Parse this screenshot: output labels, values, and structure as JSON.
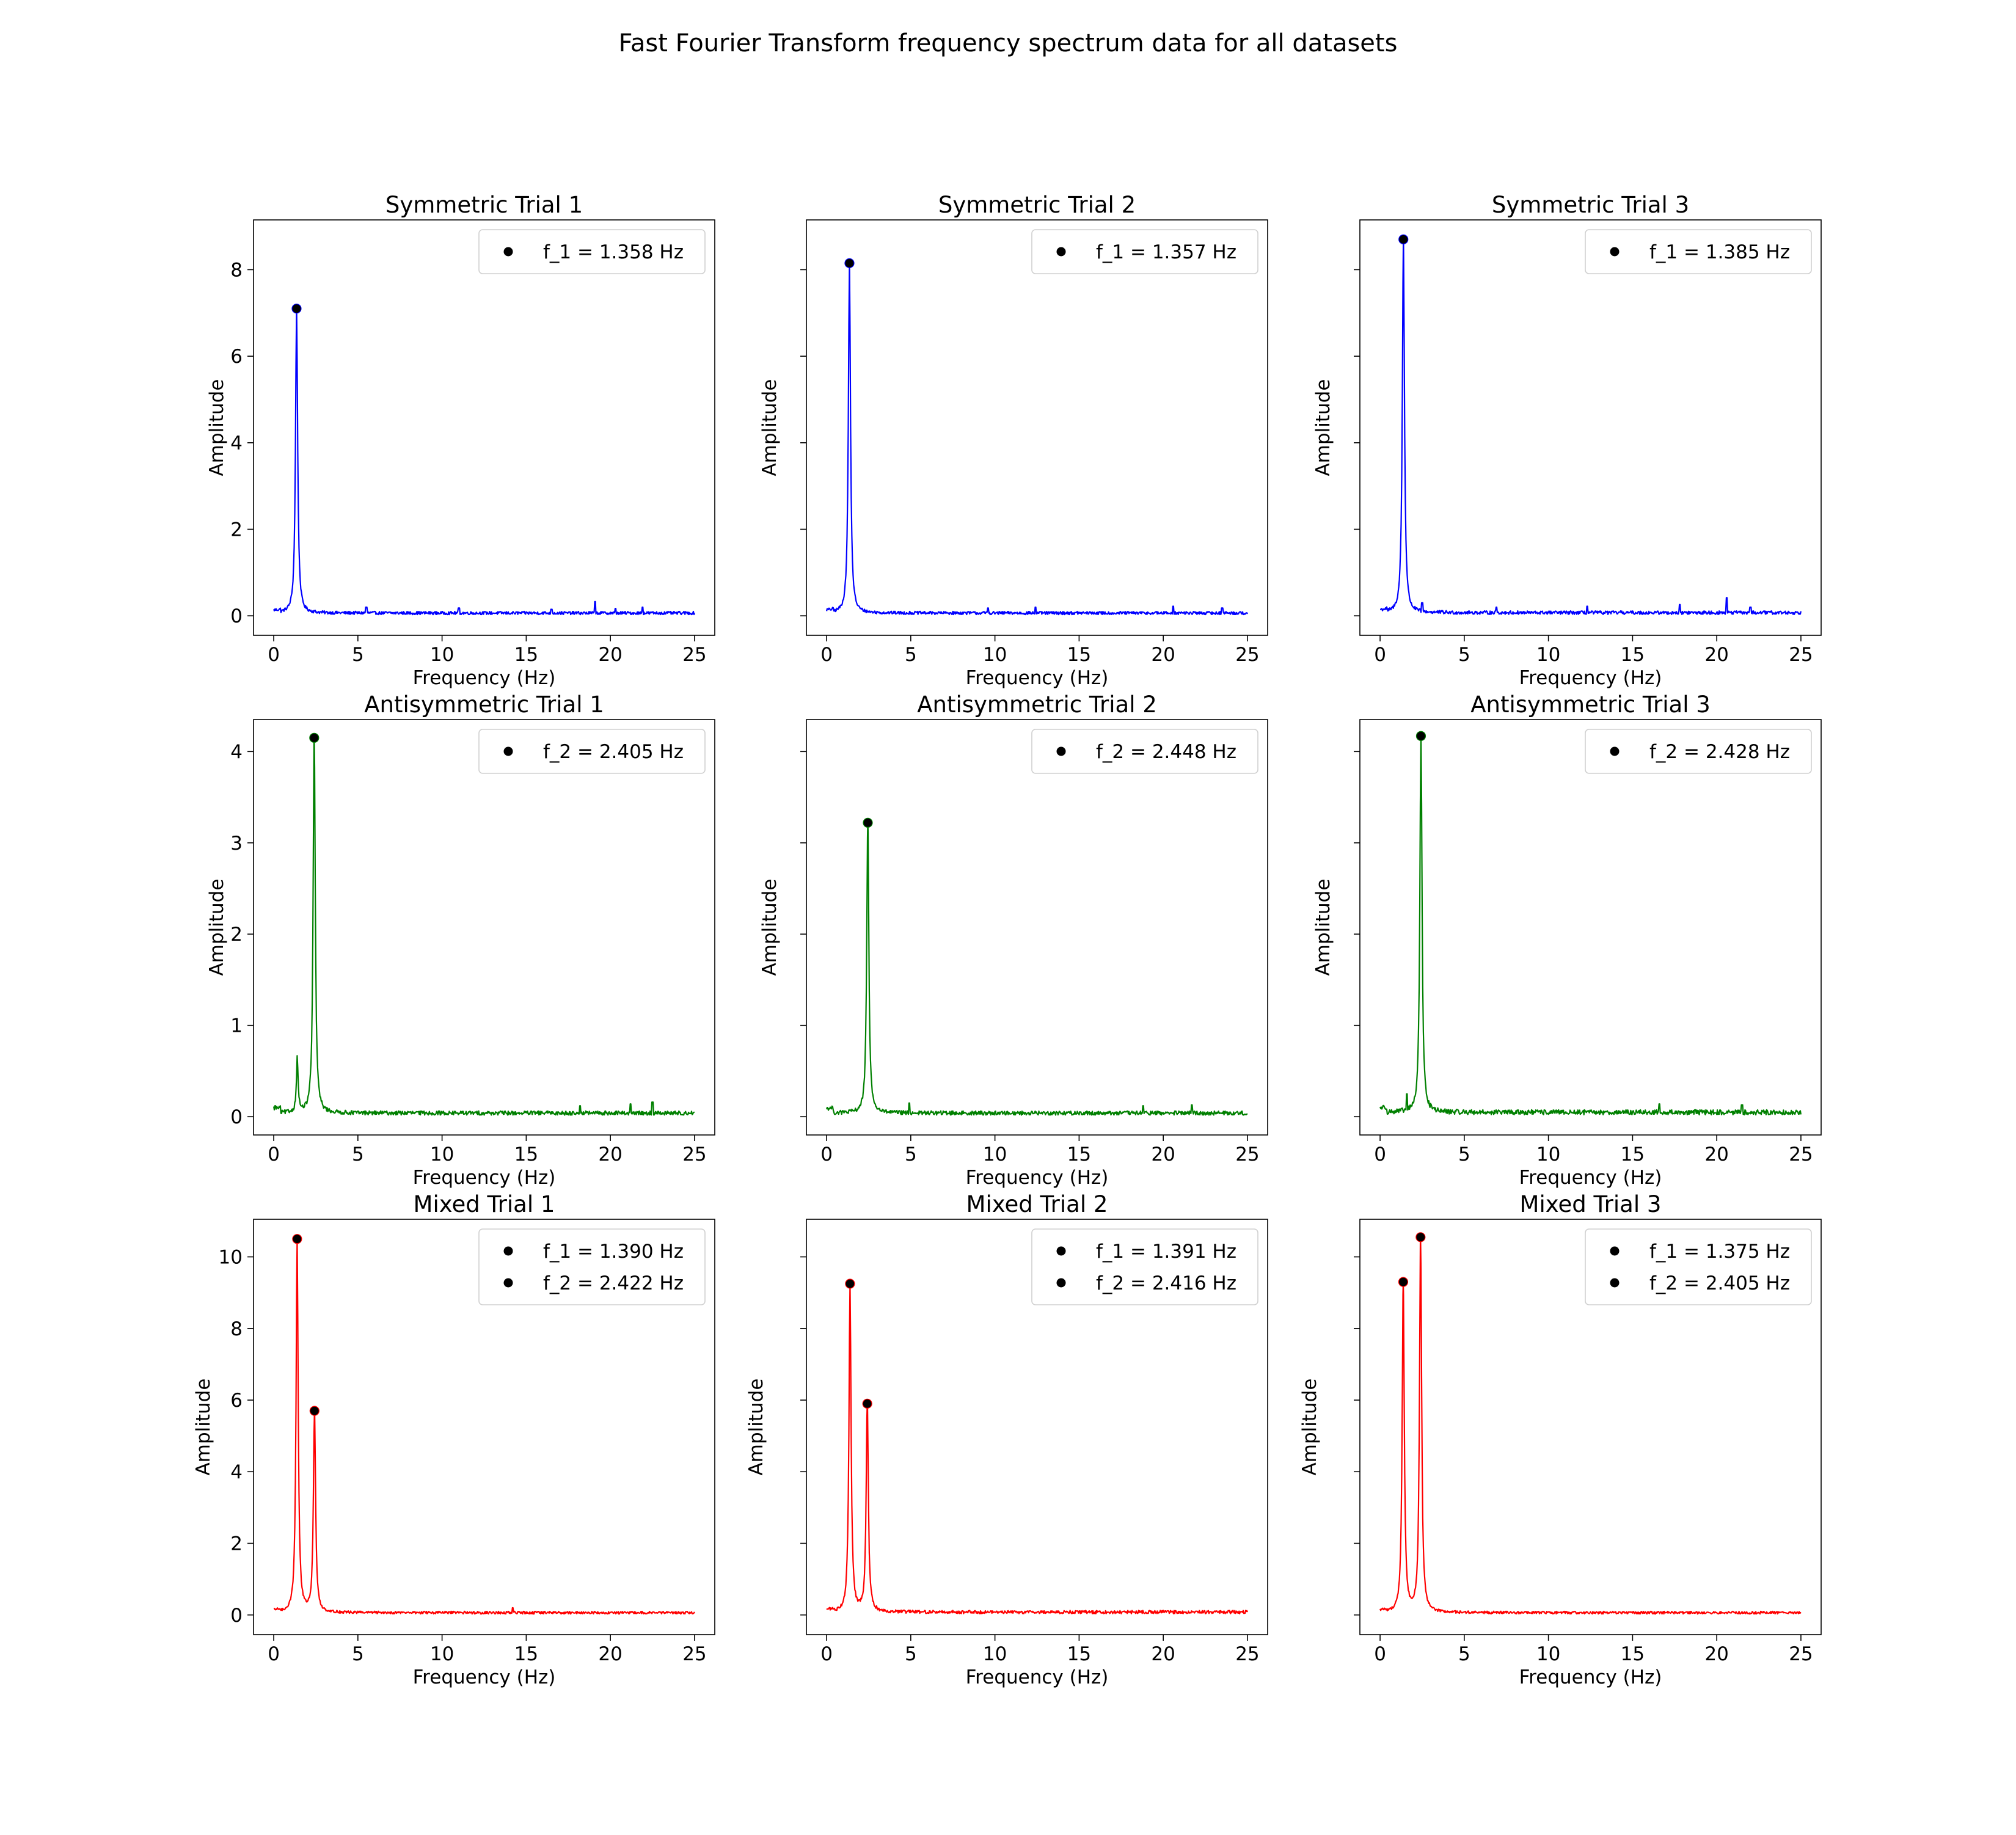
{
  "figure": {
    "title": "Fast Fourier Transform frequency spectrum data for all datasets"
  },
  "chart_data": [
    {
      "type": "line",
      "title": "Symmetric Trial 1",
      "xlabel": "Frequency (Hz)",
      "ylabel": "Amplitude",
      "color": "#0000ff",
      "xlim": [
        -1.2,
        26.2
      ],
      "ylim": [
        -0.45,
        9.15
      ],
      "xticks": [
        0,
        5,
        10,
        15,
        20,
        25
      ],
      "yticks": [
        0,
        2,
        4,
        6,
        8
      ],
      "show_ytick_labels": true,
      "peaks": [
        {
          "f": 1.358,
          "amp": 7.1
        }
      ],
      "secondary": [],
      "noise_level": 0.08,
      "spikes": [
        [
          5.5,
          0.2
        ],
        [
          11.0,
          0.18
        ],
        [
          16.5,
          0.15
        ],
        [
          19.1,
          0.33
        ],
        [
          20.3,
          0.17
        ],
        [
          21.9,
          0.2
        ]
      ],
      "legend": [
        "f_1 = 1.358 Hz"
      ]
    },
    {
      "type": "line",
      "title": "Symmetric Trial 2",
      "xlabel": "Frequency (Hz)",
      "ylabel": "Amplitude",
      "color": "#0000ff",
      "xlim": [
        -1.2,
        26.2
      ],
      "ylim": [
        -0.45,
        9.15
      ],
      "xticks": [
        0,
        5,
        10,
        15,
        20,
        25
      ],
      "yticks": [
        0,
        2,
        4,
        6,
        8
      ],
      "show_ytick_labels": false,
      "peaks": [
        {
          "f": 1.357,
          "amp": 8.15
        }
      ],
      "secondary": [],
      "noise_level": 0.08,
      "spikes": [
        [
          9.6,
          0.18
        ],
        [
          12.4,
          0.2
        ],
        [
          20.6,
          0.22
        ],
        [
          23.5,
          0.18
        ]
      ],
      "legend": [
        "f_1 = 1.357 Hz"
      ]
    },
    {
      "type": "line",
      "title": "Symmetric Trial 3",
      "xlabel": "Frequency (Hz)",
      "ylabel": "Amplitude",
      "color": "#0000ff",
      "xlim": [
        -1.2,
        26.2
      ],
      "ylim": [
        -0.45,
        9.15
      ],
      "xticks": [
        0,
        5,
        10,
        15,
        20,
        25
      ],
      "yticks": [
        0,
        2,
        4,
        6,
        8
      ],
      "show_ytick_labels": false,
      "peaks": [
        {
          "f": 1.385,
          "amp": 8.7
        }
      ],
      "secondary": [],
      "noise_level": 0.09,
      "spikes": [
        [
          2.5,
          0.3
        ],
        [
          6.9,
          0.2
        ],
        [
          12.3,
          0.22
        ],
        [
          17.8,
          0.26
        ],
        [
          20.6,
          0.42
        ],
        [
          22.0,
          0.2
        ]
      ],
      "legend": [
        "f_1 = 1.385 Hz"
      ]
    },
    {
      "type": "line",
      "title": "Antisymmetric Trial 1",
      "xlabel": "Frequency (Hz)",
      "ylabel": "Amplitude",
      "color": "#008000",
      "xlim": [
        -1.2,
        26.2
      ],
      "ylim": [
        -0.2,
        4.35
      ],
      "xticks": [
        0,
        5,
        10,
        15,
        20,
        25
      ],
      "yticks": [
        0,
        1,
        2,
        3,
        4
      ],
      "show_ytick_labels": true,
      "peaks": [
        {
          "f": 2.405,
          "amp": 4.15
        }
      ],
      "secondary": [
        [
          1.4,
          0.6
        ]
      ],
      "noise_level": 0.05,
      "spikes": [
        [
          0.1,
          0.12
        ],
        [
          18.2,
          0.12
        ],
        [
          21.2,
          0.14
        ],
        [
          22.5,
          0.16
        ]
      ],
      "legend": [
        "f_2 = 2.405 Hz"
      ]
    },
    {
      "type": "line",
      "title": "Antisymmetric Trial 2",
      "xlabel": "Frequency (Hz)",
      "ylabel": "Amplitude",
      "color": "#008000",
      "xlim": [
        -1.2,
        26.2
      ],
      "ylim": [
        -0.2,
        4.35
      ],
      "xticks": [
        0,
        5,
        10,
        15,
        20,
        25
      ],
      "yticks": [
        0,
        1,
        2,
        3,
        4
      ],
      "show_ytick_labels": false,
      "peaks": [
        {
          "f": 2.448,
          "amp": 3.22
        }
      ],
      "secondary": [],
      "noise_level": 0.05,
      "spikes": [
        [
          4.9,
          0.15
        ],
        [
          18.8,
          0.12
        ],
        [
          21.7,
          0.13
        ]
      ],
      "legend": [
        "f_2 = 2.448 Hz"
      ]
    },
    {
      "type": "line",
      "title": "Antisymmetric Trial 3",
      "xlabel": "Frequency (Hz)",
      "ylabel": "Amplitude",
      "color": "#008000",
      "xlim": [
        -1.2,
        26.2
      ],
      "ylim": [
        -0.2,
        4.35
      ],
      "xticks": [
        0,
        5,
        10,
        15,
        20,
        25
      ],
      "yticks": [
        0,
        1,
        2,
        3,
        4
      ],
      "show_ytick_labels": false,
      "peaks": [
        {
          "f": 2.428,
          "amp": 4.17
        }
      ],
      "secondary": [],
      "noise_level": 0.06,
      "spikes": [
        [
          1.6,
          0.25
        ],
        [
          16.6,
          0.14
        ],
        [
          21.5,
          0.13
        ]
      ],
      "legend": [
        "f_2 = 2.428 Hz"
      ]
    },
    {
      "type": "line",
      "title": "Mixed Trial 1",
      "xlabel": "Frequency (Hz)",
      "ylabel": "Amplitude",
      "color": "#ff0000",
      "xlim": [
        -1.2,
        26.2
      ],
      "ylim": [
        -0.55,
        11.05
      ],
      "xticks": [
        0,
        5,
        10,
        15,
        20,
        25
      ],
      "yticks": [
        0,
        2,
        4,
        6,
        8,
        10
      ],
      "show_ytick_labels": true,
      "peaks": [
        {
          "f": 1.39,
          "amp": 10.5
        },
        {
          "f": 2.422,
          "amp": 5.7
        }
      ],
      "secondary": [],
      "noise_level": 0.08,
      "spikes": [
        [
          14.2,
          0.2
        ]
      ],
      "legend": [
        "f_1 = 1.390 Hz",
        "f_2 = 2.422 Hz"
      ]
    },
    {
      "type": "line",
      "title": "Mixed Trial 2",
      "xlabel": "Frequency (Hz)",
      "ylabel": "Amplitude",
      "color": "#ff0000",
      "xlim": [
        -1.2,
        26.2
      ],
      "ylim": [
        -0.55,
        11.05
      ],
      "xticks": [
        0,
        5,
        10,
        15,
        20,
        25
      ],
      "yticks": [
        0,
        2,
        4,
        6,
        8,
        10
      ],
      "show_ytick_labels": false,
      "peaks": [
        {
          "f": 1.391,
          "amp": 9.25
        },
        {
          "f": 2.416,
          "amp": 5.9
        }
      ],
      "secondary": [],
      "noise_level": 0.1,
      "spikes": [],
      "legend": [
        "f_1 = 1.391 Hz",
        "f_2 = 2.416 Hz"
      ]
    },
    {
      "type": "line",
      "title": "Mixed Trial 3",
      "xlabel": "Frequency (Hz)",
      "ylabel": "Amplitude",
      "color": "#ff0000",
      "xlim": [
        -1.2,
        26.2
      ],
      "ylim": [
        -0.55,
        11.05
      ],
      "xticks": [
        0,
        5,
        10,
        15,
        20,
        25
      ],
      "yticks": [
        0,
        2,
        4,
        6,
        8,
        10
      ],
      "show_ytick_labels": false,
      "peaks": [
        {
          "f": 1.375,
          "amp": 9.3
        },
        {
          "f": 2.405,
          "amp": 10.55
        }
      ],
      "secondary": [],
      "noise_level": 0.08,
      "spikes": [],
      "legend": [
        "f_1 = 1.375 Hz",
        "f_2 = 2.405 Hz"
      ]
    }
  ]
}
